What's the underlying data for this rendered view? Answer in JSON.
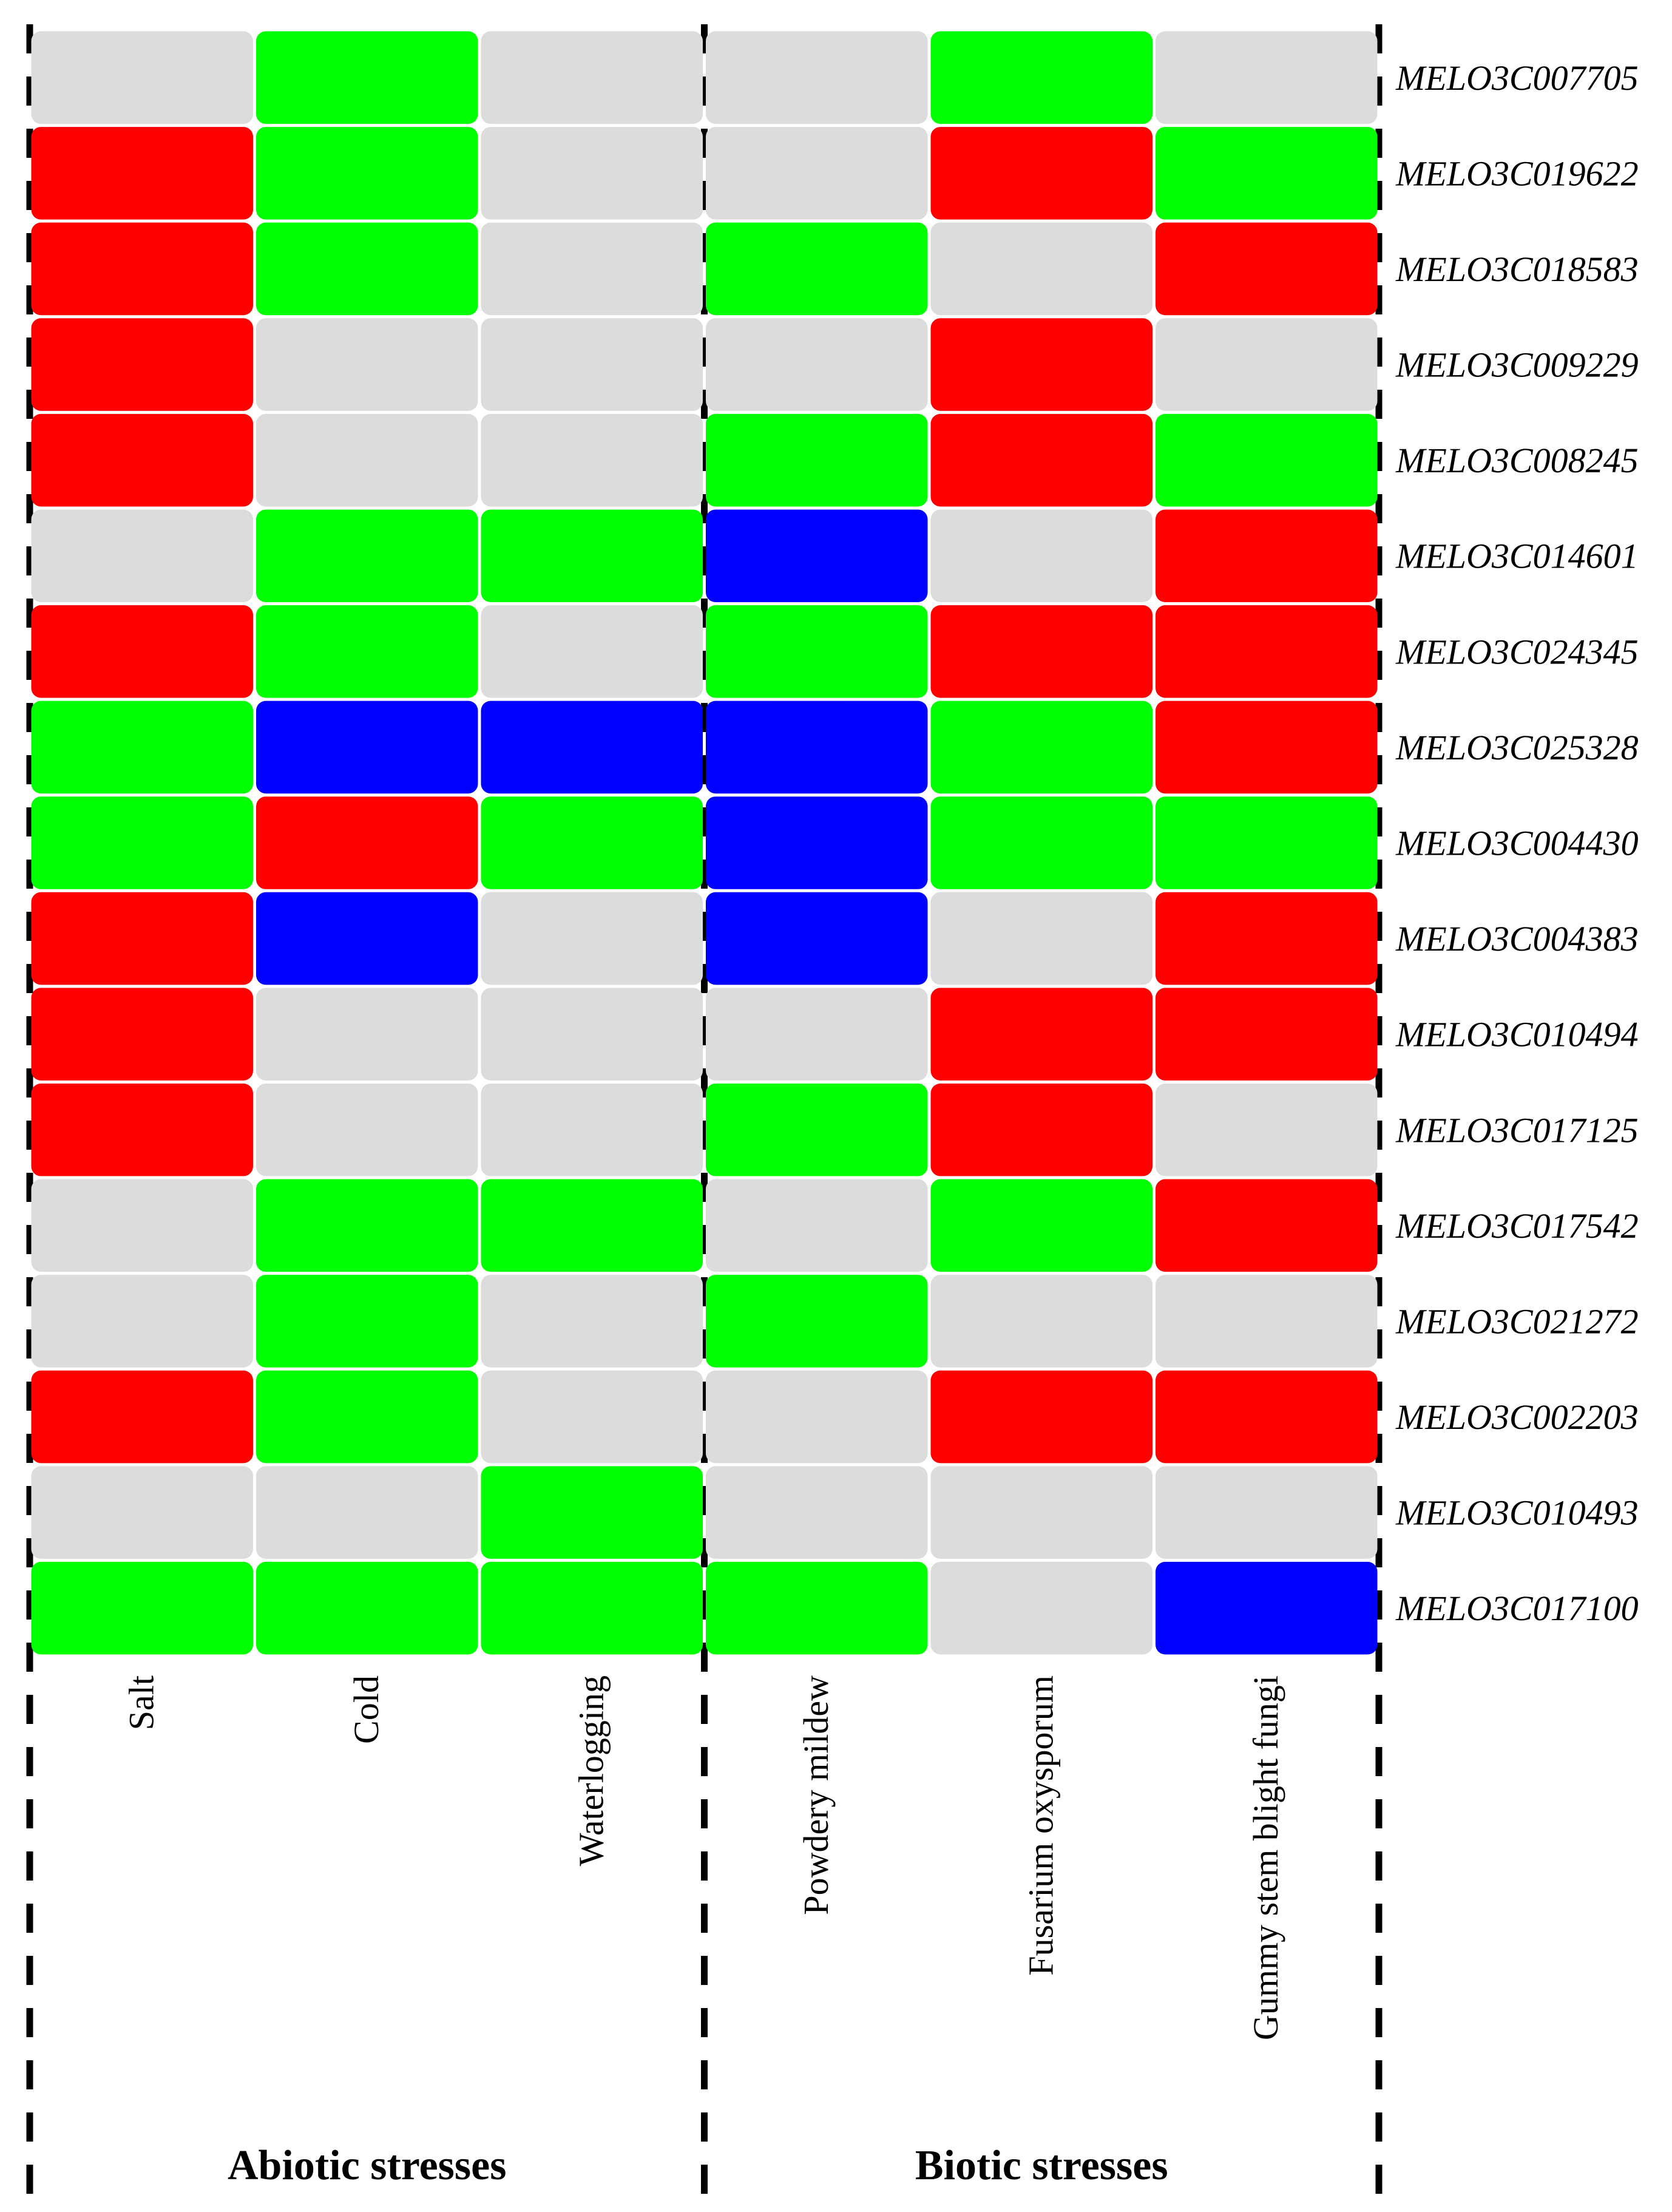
{
  "chart_data": {
    "type": "heatmap",
    "title": "",
    "colors": {
      "red": "#ff0000",
      "green": "#00ff00",
      "blue": "#0000ff",
      "grey": "#dcdcdc"
    },
    "groups": [
      {
        "label": "Abiotic stresses",
        "columns": [
          0,
          1,
          2
        ]
      },
      {
        "label": "Biotic stresses",
        "columns": [
          3,
          4,
          5
        ]
      }
    ],
    "columns": [
      "Salt",
      "Cold",
      "Waterlogging",
      "Powdery mildew",
      "Fusarium oxysporum",
      "Gummy stem blight fungi"
    ],
    "rows": [
      {
        "gene": "MELO3C007705",
        "values": [
          "grey",
          "green",
          "grey",
          "grey",
          "green",
          "grey"
        ]
      },
      {
        "gene": "MELO3C019622",
        "values": [
          "red",
          "green",
          "grey",
          "grey",
          "red",
          "green"
        ]
      },
      {
        "gene": "MELO3C018583",
        "values": [
          "red",
          "green",
          "grey",
          "green",
          "grey",
          "red"
        ]
      },
      {
        "gene": "MELO3C009229",
        "values": [
          "red",
          "grey",
          "grey",
          "grey",
          "red",
          "grey"
        ]
      },
      {
        "gene": "MELO3C008245",
        "values": [
          "red",
          "grey",
          "grey",
          "green",
          "red",
          "green"
        ]
      },
      {
        "gene": "MELO3C014601",
        "values": [
          "grey",
          "green",
          "green",
          "blue",
          "grey",
          "red"
        ]
      },
      {
        "gene": "MELO3C024345",
        "values": [
          "red",
          "green",
          "grey",
          "green",
          "red",
          "red"
        ]
      },
      {
        "gene": "MELO3C025328",
        "values": [
          "green",
          "blue",
          "blue",
          "blue",
          "green",
          "red"
        ]
      },
      {
        "gene": "MELO3C004430",
        "values": [
          "green",
          "red",
          "green",
          "blue",
          "green",
          "green"
        ]
      },
      {
        "gene": "MELO3C004383",
        "values": [
          "red",
          "blue",
          "grey",
          "blue",
          "grey",
          "red"
        ]
      },
      {
        "gene": "MELO3C010494",
        "values": [
          "red",
          "grey",
          "grey",
          "grey",
          "red",
          "red"
        ]
      },
      {
        "gene": "MELO3C017125",
        "values": [
          "red",
          "grey",
          "grey",
          "green",
          "red",
          "grey"
        ]
      },
      {
        "gene": "MELO3C017542",
        "values": [
          "grey",
          "green",
          "green",
          "grey",
          "green",
          "red"
        ]
      },
      {
        "gene": "MELO3C021272",
        "values": [
          "grey",
          "green",
          "grey",
          "green",
          "grey",
          "grey"
        ]
      },
      {
        "gene": "MELO3C002203",
        "values": [
          "red",
          "green",
          "grey",
          "grey",
          "red",
          "red"
        ]
      },
      {
        "gene": "MELO3C010493",
        "values": [
          "grey",
          "grey",
          "green",
          "grey",
          "grey",
          "grey"
        ]
      },
      {
        "gene": "MELO3C017100",
        "values": [
          "green",
          "green",
          "green",
          "green",
          "grey",
          "blue"
        ]
      }
    ]
  }
}
